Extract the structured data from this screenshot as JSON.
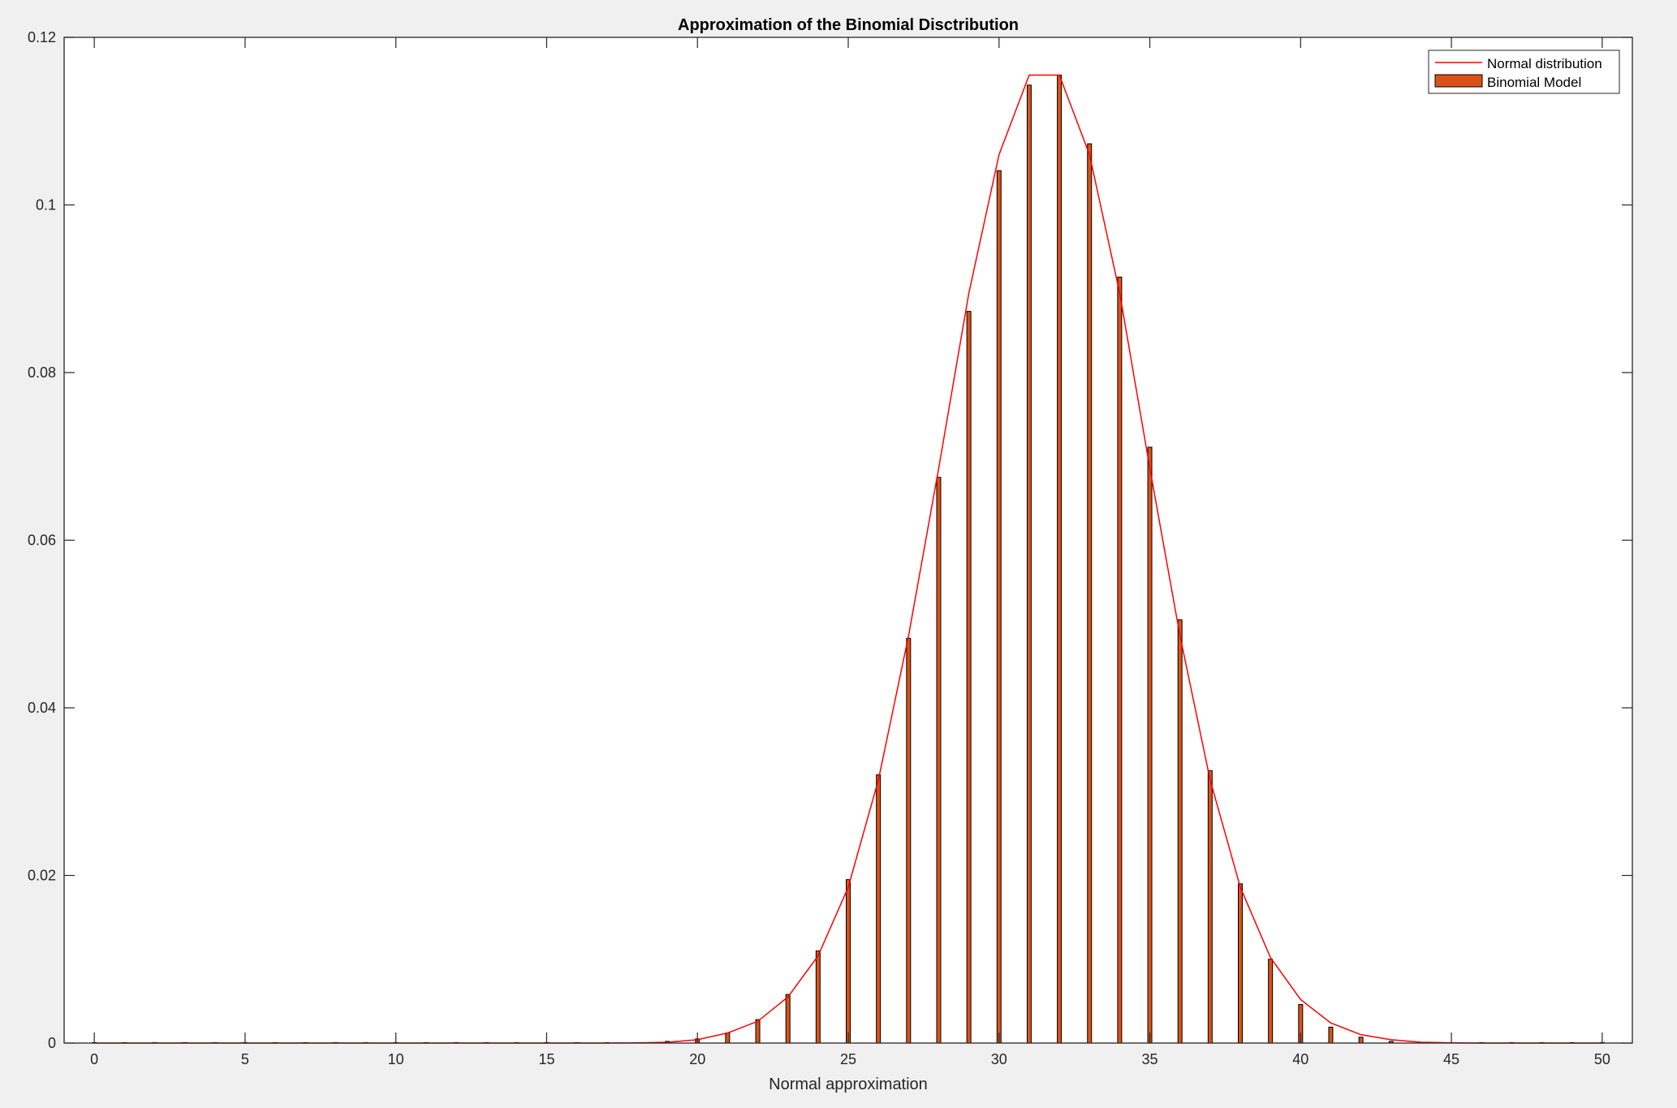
{
  "chart_data": {
    "type": "bar",
    "title": "Approximation of the Binomial Disctribution",
    "xlabel": "Normal approximation",
    "ylabel": "",
    "xlim": [
      -1,
      51
    ],
    "ylim": [
      0,
      0.12
    ],
    "xticks": [
      0,
      5,
      10,
      15,
      20,
      25,
      30,
      35,
      40,
      45,
      50
    ],
    "yticks": [
      0,
      0.02,
      0.04,
      0.06,
      0.08,
      0.1,
      0.12
    ],
    "ytick_labels": [
      "0",
      "0.02",
      "0.04",
      "0.06",
      "0.08",
      "0.1",
      "0.12"
    ],
    "grid": false,
    "legend": {
      "position": "top-right",
      "entries": [
        {
          "label": "Normal distribution",
          "kind": "line",
          "color": "#ff0000"
        },
        {
          "label": "Binomial Model",
          "kind": "bar",
          "color": "#d95319"
        }
      ]
    },
    "x": [
      0,
      1,
      2,
      3,
      4,
      5,
      6,
      7,
      8,
      9,
      10,
      11,
      12,
      13,
      14,
      15,
      16,
      17,
      18,
      19,
      20,
      21,
      22,
      23,
      24,
      25,
      26,
      27,
      28,
      29,
      30,
      31,
      32,
      33,
      34,
      35,
      36,
      37,
      38,
      39,
      40,
      41,
      42,
      43,
      44,
      45,
      46,
      47,
      48,
      49,
      50
    ],
    "series": [
      {
        "name": "Normal distribution",
        "kind": "line",
        "color": "#ff0000",
        "values": [
          0,
          0,
          0,
          0,
          0,
          0,
          0,
          0,
          0,
          0,
          0,
          0,
          0,
          0,
          0,
          0,
          0,
          0,
          2e-05,
          0.0001,
          0.0004,
          0.0012,
          0.0026,
          0.0055,
          0.0104,
          0.0186,
          0.0314,
          0.0486,
          0.0686,
          0.0895,
          0.106,
          0.1155,
          0.1155,
          0.106,
          0.0895,
          0.0686,
          0.0486,
          0.0314,
          0.0186,
          0.0102,
          0.0052,
          0.0024,
          0.001,
          0.0004,
          0.0001,
          3e-05,
          0,
          0,
          0,
          0,
          0
        ]
      },
      {
        "name": "Binomial Model",
        "kind": "bar",
        "color": "#d95319",
        "values": [
          0,
          0,
          0,
          0,
          0,
          0,
          0,
          0,
          0,
          0,
          0,
          0,
          0,
          0,
          0,
          0,
          0,
          1e-05,
          5e-05,
          0.0002,
          0.0005,
          0.0012,
          0.0028,
          0.0058,
          0.011,
          0.0195,
          0.032,
          0.0483,
          0.0675,
          0.0873,
          0.1041,
          0.1143,
          0.1155,
          0.1073,
          0.0914,
          0.0711,
          0.0505,
          0.0325,
          0.019,
          0.01,
          0.0046,
          0.0019,
          0.0007,
          0.0002,
          5e-05,
          1e-05,
          0,
          0,
          0,
          0,
          0
        ]
      }
    ]
  }
}
